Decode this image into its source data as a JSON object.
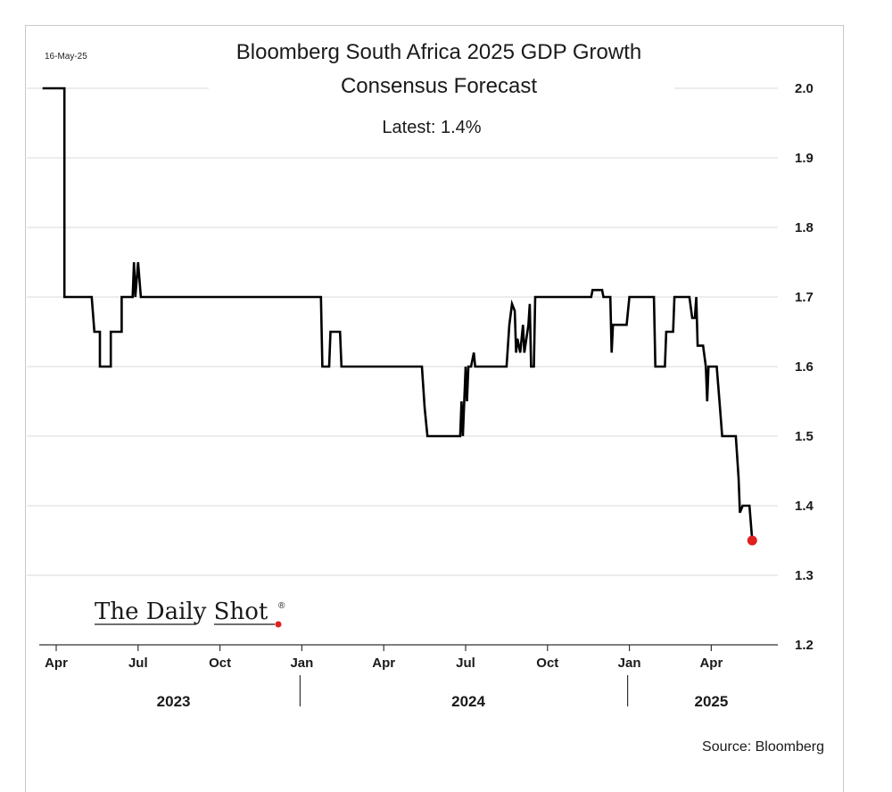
{
  "date_stamp": "16-May-25",
  "source": "Source: Bloomberg",
  "logo": {
    "text": "The Daily Shot",
    "mark": "®",
    "dot_color": "#e02020"
  },
  "chart_data": {
    "type": "line",
    "title": "Bloomberg South Africa 2025 GDP Growth",
    "subtitle": "Consensus Forecast",
    "annotation": "Latest:  1.4%",
    "xlabel": "",
    "ylabel": "",
    "y_axis_side": "right",
    "grid": true,
    "ylim": [
      1.2,
      2.0
    ],
    "yticks": [
      2.0,
      1.9,
      1.8,
      1.7,
      1.6,
      1.5,
      1.4,
      1.3,
      1.2
    ],
    "ytick_labels": [
      "2.0",
      "1.9",
      "1.8",
      "1.7",
      "1.6",
      "1.5",
      "1.4",
      "1.3",
      "1.2"
    ],
    "x_range": [
      -0.2,
      26.0
    ],
    "x_unit": "months since Apr 2023",
    "xticks": [
      {
        "label": "Apr",
        "x": 0
      },
      {
        "label": "Jul",
        "x": 3
      },
      {
        "label": "Oct",
        "x": 6
      },
      {
        "label": "Jan",
        "x": 9
      },
      {
        "label": "Apr",
        "x": 12
      },
      {
        "label": "Jul",
        "x": 15
      },
      {
        "label": "Oct",
        "x": 18
      },
      {
        "label": "Jan",
        "x": 21
      },
      {
        "label": "Apr",
        "x": 24
      }
    ],
    "years": [
      {
        "label": "2023",
        "x": 4.3
      },
      {
        "label": "2024",
        "x": 15.1
      },
      {
        "label": "2025",
        "x": 24.0
      }
    ],
    "year_separators": [
      9,
      21
    ],
    "series": [
      {
        "name": "South Africa 2025 GDP growth consensus forecast",
        "color": "#000000",
        "points": [
          [
            -0.5,
            2.0
          ],
          [
            0.3,
            2.0
          ],
          [
            0.3,
            1.7
          ],
          [
            1.3,
            1.7
          ],
          [
            1.4,
            1.65
          ],
          [
            1.6,
            1.65
          ],
          [
            1.6,
            1.6
          ],
          [
            2.0,
            1.6
          ],
          [
            2.0,
            1.65
          ],
          [
            2.4,
            1.65
          ],
          [
            2.4,
            1.7
          ],
          [
            2.8,
            1.7
          ],
          [
            2.85,
            1.75
          ],
          [
            2.9,
            1.7
          ],
          [
            3.0,
            1.75
          ],
          [
            3.1,
            1.7
          ],
          [
            9.7,
            1.7
          ],
          [
            9.75,
            1.6
          ],
          [
            10.0,
            1.6
          ],
          [
            10.05,
            1.65
          ],
          [
            10.4,
            1.65
          ],
          [
            10.45,
            1.6
          ],
          [
            13.4,
            1.6
          ],
          [
            13.5,
            1.54
          ],
          [
            13.6,
            1.5
          ],
          [
            14.8,
            1.5
          ],
          [
            14.85,
            1.55
          ],
          [
            14.9,
            1.5
          ],
          [
            15.0,
            1.6
          ],
          [
            15.05,
            1.55
          ],
          [
            15.1,
            1.6
          ],
          [
            15.2,
            1.6
          ],
          [
            15.3,
            1.62
          ],
          [
            15.35,
            1.6
          ],
          [
            16.5,
            1.6
          ],
          [
            16.6,
            1.66
          ],
          [
            16.7,
            1.69
          ],
          [
            16.8,
            1.68
          ],
          [
            16.85,
            1.62
          ],
          [
            16.9,
            1.64
          ],
          [
            17.0,
            1.62
          ],
          [
            17.1,
            1.66
          ],
          [
            17.15,
            1.62
          ],
          [
            17.3,
            1.66
          ],
          [
            17.35,
            1.69
          ],
          [
            17.4,
            1.6
          ],
          [
            17.5,
            1.6
          ],
          [
            17.55,
            1.7
          ],
          [
            19.6,
            1.7
          ],
          [
            19.65,
            1.71
          ],
          [
            20.0,
            1.71
          ],
          [
            20.05,
            1.7
          ],
          [
            20.3,
            1.7
          ],
          [
            20.35,
            1.62
          ],
          [
            20.4,
            1.66
          ],
          [
            20.9,
            1.66
          ],
          [
            21.0,
            1.7
          ],
          [
            21.9,
            1.7
          ],
          [
            21.95,
            1.6
          ],
          [
            22.3,
            1.6
          ],
          [
            22.35,
            1.65
          ],
          [
            22.6,
            1.65
          ],
          [
            22.65,
            1.7
          ],
          [
            23.2,
            1.7
          ],
          [
            23.3,
            1.67
          ],
          [
            23.4,
            1.67
          ],
          [
            23.45,
            1.7
          ],
          [
            23.5,
            1.63
          ],
          [
            23.7,
            1.63
          ],
          [
            23.8,
            1.6
          ],
          [
            23.85,
            1.55
          ],
          [
            23.9,
            1.6
          ],
          [
            24.2,
            1.6
          ],
          [
            24.3,
            1.55
          ],
          [
            24.4,
            1.5
          ],
          [
            24.9,
            1.5
          ],
          [
            25.0,
            1.44
          ],
          [
            25.05,
            1.39
          ],
          [
            25.15,
            1.4
          ],
          [
            25.4,
            1.4
          ],
          [
            25.5,
            1.35
          ]
        ],
        "latest_point": {
          "x": 25.5,
          "y": 1.35,
          "color": "#e02020"
        }
      }
    ]
  }
}
